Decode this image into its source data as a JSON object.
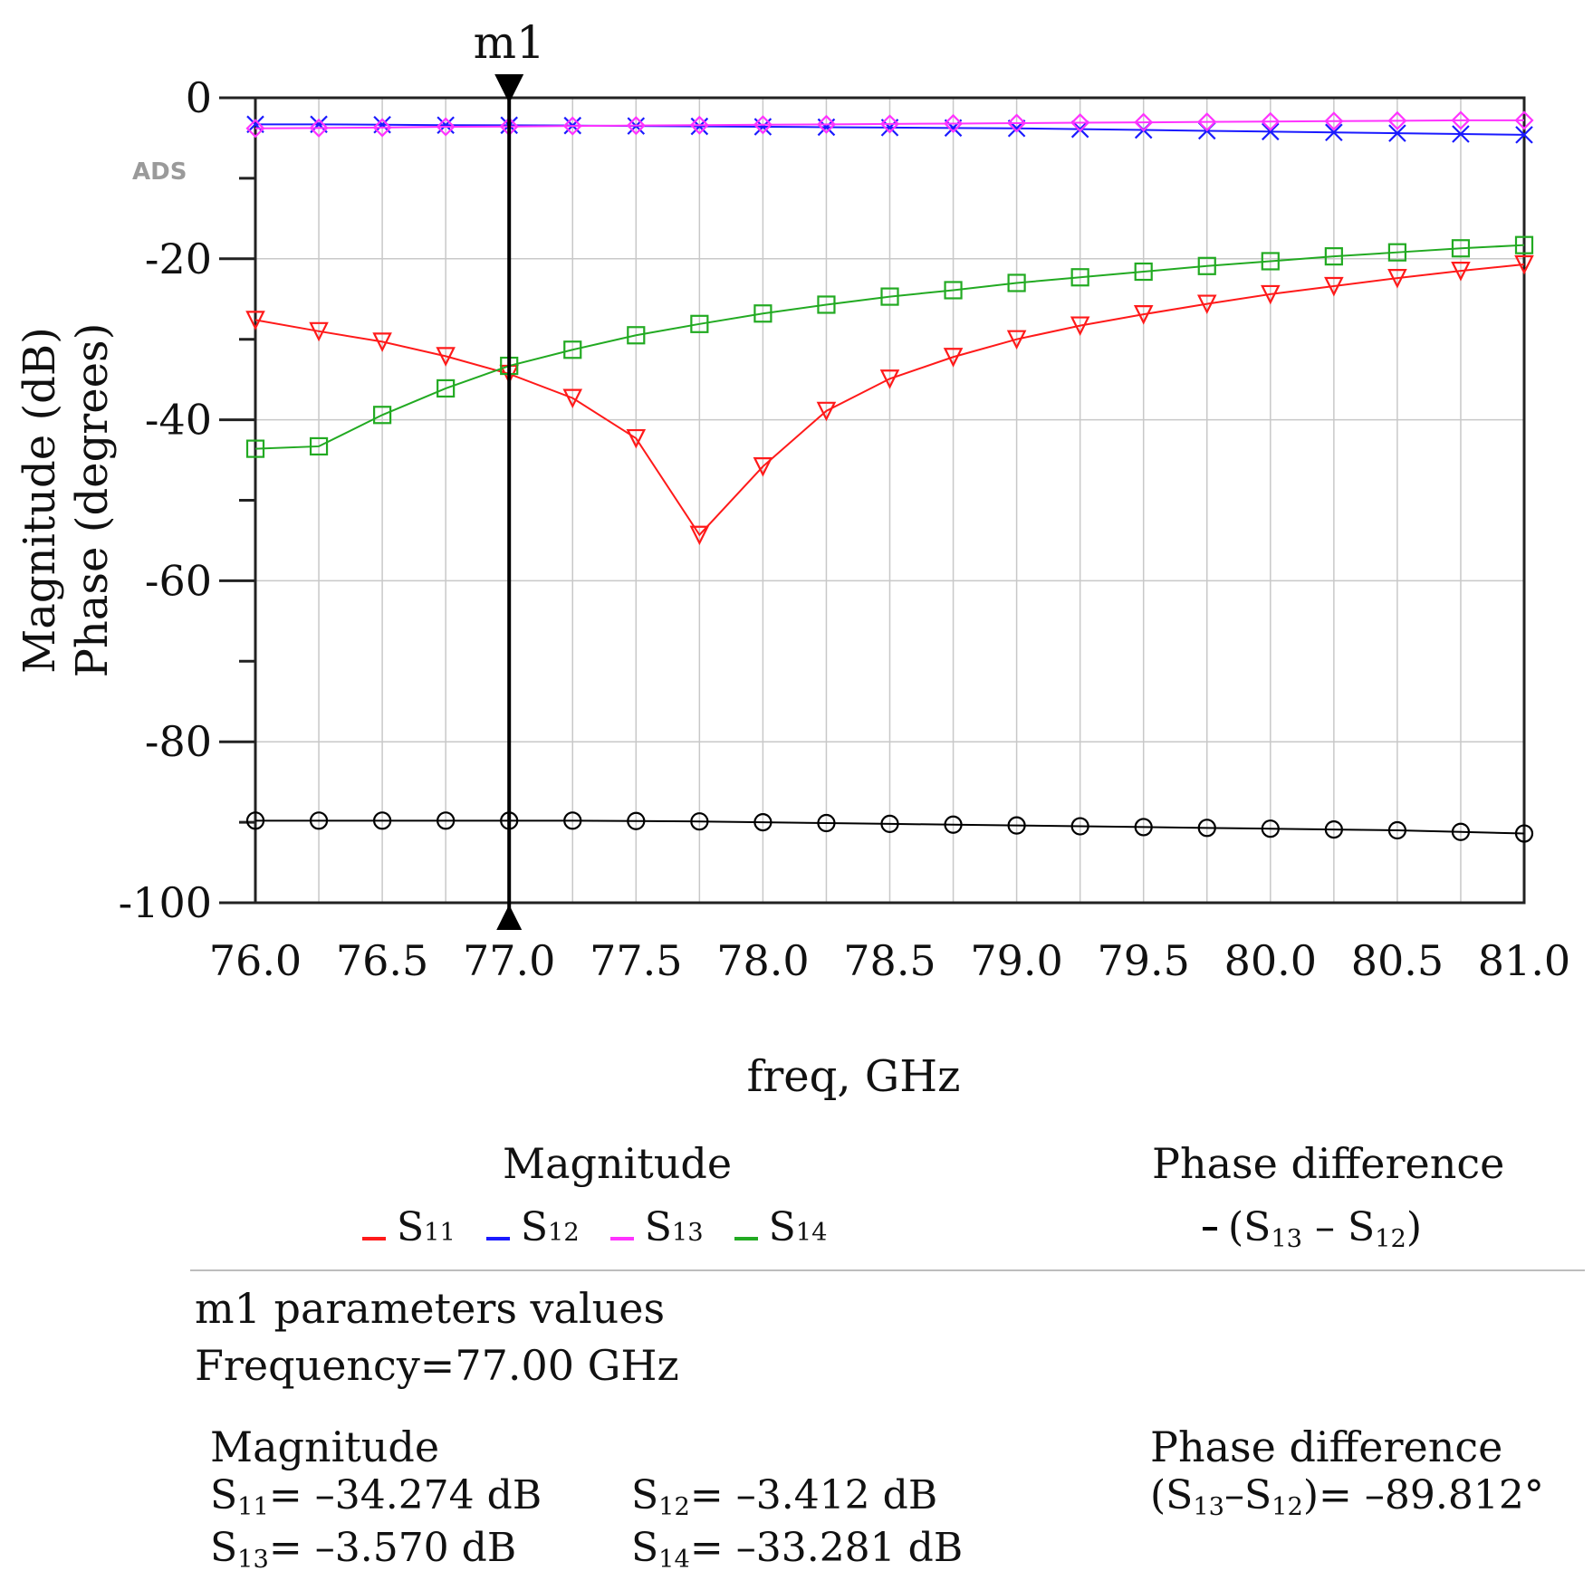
{
  "chart_data": {
    "type": "line",
    "watermark": "ADS",
    "xlabel": "freq, GHz",
    "ylabel_line1": "Magnitude (dB)",
    "ylabel_line2": "Phase (degrees)",
    "xlim": [
      76.0,
      81.0
    ],
    "ylim": [
      -100,
      0
    ],
    "x_ticks": [
      76.0,
      76.5,
      77.0,
      77.5,
      78.0,
      78.5,
      79.0,
      79.5,
      80.0,
      80.5,
      81.0
    ],
    "x_tick_labels": [
      "76.0",
      "76.5",
      "77.0",
      "77.5",
      "78.0",
      "78.5",
      "79.0",
      "79.5",
      "80.0",
      "80.5",
      "81.0"
    ],
    "y_ticks": [
      0,
      -20,
      -40,
      -60,
      -80,
      -100
    ],
    "y_tick_labels": [
      "0",
      "-20",
      "-40",
      "-60",
      "-80",
      "-100"
    ],
    "x": [
      76.0,
      76.25,
      76.5,
      76.75,
      77.0,
      77.25,
      77.5,
      77.75,
      78.0,
      78.25,
      78.5,
      78.75,
      79.0,
      79.25,
      79.5,
      79.75,
      80.0,
      80.25,
      80.5,
      80.75,
      81.0
    ],
    "series": [
      {
        "name": "S11",
        "color": "#ff1a1a",
        "marker": "triangle-down",
        "values": [
          -27.6,
          -29.0,
          -30.3,
          -32.1,
          -34.3,
          -37.3,
          -42.3,
          -54.3,
          -45.8,
          -38.9,
          -34.9,
          -32.2,
          -30.0,
          -28.3,
          -26.9,
          -25.6,
          -24.4,
          -23.4,
          -22.4,
          -21.5,
          -20.7
        ]
      },
      {
        "name": "S12",
        "color": "#1a1aff",
        "marker": "x",
        "values": [
          -3.3,
          -3.3,
          -3.35,
          -3.4,
          -3.41,
          -3.45,
          -3.5,
          -3.55,
          -3.6,
          -3.65,
          -3.7,
          -3.75,
          -3.8,
          -3.9,
          -4.0,
          -4.1,
          -4.2,
          -4.3,
          -4.4,
          -4.5,
          -4.6
        ]
      },
      {
        "name": "S13",
        "color": "#ff33ff",
        "marker": "diamond",
        "values": [
          -3.8,
          -3.75,
          -3.7,
          -3.6,
          -3.57,
          -3.5,
          -3.45,
          -3.4,
          -3.35,
          -3.3,
          -3.25,
          -3.2,
          -3.15,
          -3.1,
          -3.05,
          -3.0,
          -2.95,
          -2.9,
          -2.85,
          -2.8,
          -2.8
        ]
      },
      {
        "name": "S14",
        "color": "#22aa22",
        "marker": "square",
        "values": [
          -43.6,
          -43.3,
          -39.4,
          -36.1,
          -33.3,
          -31.3,
          -29.5,
          -28.1,
          -26.8,
          -25.7,
          -24.7,
          -23.9,
          -23.0,
          -22.3,
          -21.6,
          -20.9,
          -20.3,
          -19.7,
          -19.2,
          -18.7,
          -18.3
        ]
      },
      {
        "name": "Phase S13-S12",
        "color": "#000000",
        "marker": "circle",
        "values": [
          -89.8,
          -89.8,
          -89.8,
          -89.8,
          -89.81,
          -89.8,
          -89.85,
          -89.9,
          -90.0,
          -90.1,
          -90.2,
          -90.3,
          -90.4,
          -90.5,
          -90.6,
          -90.7,
          -90.8,
          -90.9,
          -91.0,
          -91.2,
          -91.4
        ]
      }
    ],
    "marker": {
      "name": "m1",
      "x": 77.0
    }
  },
  "legend": {
    "magnitude_heading": "Magnitude",
    "phase_heading": "Phase difference",
    "items": [
      {
        "label": "S",
        "sub": "11",
        "color": "#ff1a1a"
      },
      {
        "label": "S",
        "sub": "12",
        "color": "#1a1aff"
      },
      {
        "label": "S",
        "sub": "13",
        "color": "#ff33ff"
      },
      {
        "label": "S",
        "sub": "14",
        "color": "#22aa22"
      }
    ],
    "phase_item": {
      "prefix": "(S",
      "sub1": "13",
      "mid": " – S",
      "sub2": "12",
      "suffix": ")",
      "color": "#000000"
    }
  },
  "m1_info": {
    "title": "m1 parameters values",
    "frequency": "Frequency=77.00 GHz",
    "magnitude_heading": "Magnitude",
    "phase_heading": "Phase difference",
    "s11": {
      "label": "S",
      "sub": "11",
      "value": "= –34.274 dB"
    },
    "s12": {
      "label": "S",
      "sub": "12",
      "value": "= –3.412 dB"
    },
    "s13": {
      "label": "S",
      "sub": "13",
      "value": "= –3.570 dB"
    },
    "s14": {
      "label": "S",
      "sub": "14",
      "value": "= –33.281 dB"
    },
    "phase": {
      "prefix": "(S",
      "sub1": "13",
      "mid": "–S",
      "sub2": "12",
      "suffix": ")",
      "value": "= –89.812°"
    }
  }
}
